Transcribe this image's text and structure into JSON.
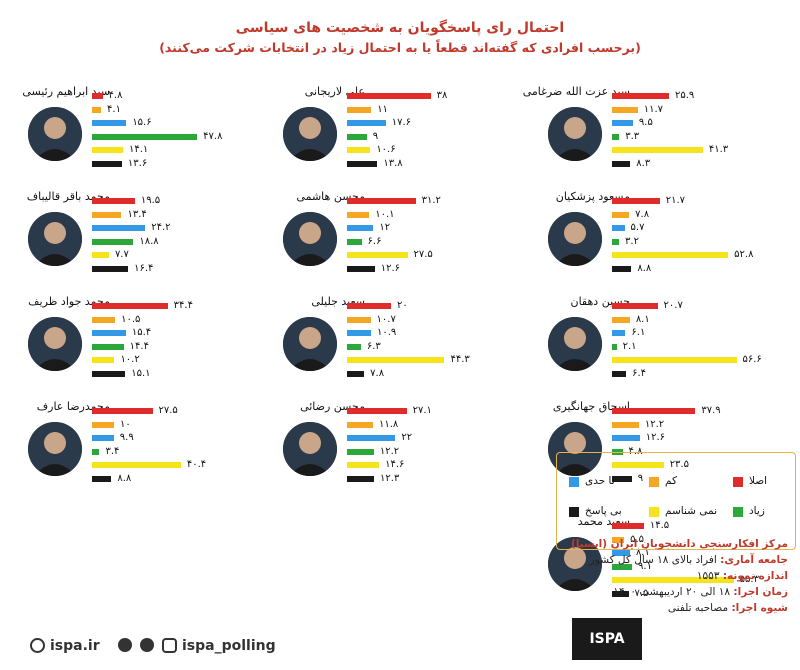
{
  "title": "احتمال رای پاسخگویان به شخصیت های سیاسی",
  "subtitle": "(برحسب افرادی که گفته‌اند قطعاً یا به احتمال زیاد در انتخابات شرکت می‌کنند)",
  "colors": {
    "asla": "#e02b2b",
    "kam": "#f5a623",
    "tahaddi": "#3399e6",
    "ziad": "#2ca83a",
    "namishenasam": "#f5e31b",
    "bipasokh": "#1a1a1a"
  },
  "legend": {
    "asla": "اصلا",
    "kam": "کم",
    "tahaddi": "تا حدی",
    "ziad": "زیاد",
    "namishenasam": "نمی شناسم",
    "bipasokh": "بی پاسخ"
  },
  "info": {
    "org": "مرکز افکارسنجی دانشجویان ایران (ایسپا)",
    "population_label": "جامعه آماری:",
    "population": "افراد بالای ۱۸ سال کل کشور",
    "sample_label": "اندازه نمونه:",
    "sample": "۱۵۵۳",
    "time_label": "زمان اجرا:",
    "time": "۱۸ الی ۲۰ اردیبهشت ۱۴۰۰",
    "method_label": "شیوه اجرا:",
    "method": "مصاحبه تلفنی"
  },
  "footer": {
    "site": "ispa.ir",
    "handle": "ispa_polling"
  },
  "logo": "ISPA",
  "chart_data": {
    "type": "bar",
    "title": "احتمال رای پاسخگویان به شخصیت های سیاسی",
    "subtitle": "(برحسب افرادی که گفته‌اند قطعاً یا به احتمال زیاد در انتخابات شرکت می‌کنند)",
    "categories": [
      "اصلا",
      "کم",
      "تا حدی",
      "زیاد",
      "نمی شناسم",
      "بی پاسخ"
    ],
    "panels": [
      {
        "name": "سید عزت الله ضرغامی",
        "values": [
          25.9,
          11.7,
          9.5,
          3.3,
          41.3,
          8.3
        ],
        "labels": [
          "۲۵.۹",
          "۱۱.۷",
          "۹.۵",
          "۳.۳",
          "۴۱.۳",
          "۸.۳"
        ]
      },
      {
        "name": "علی لاریجانی",
        "values": [
          38,
          11,
          17.6,
          9,
          10.6,
          13.8
        ],
        "labels": [
          "۳۸",
          "۱۱",
          "۱۷.۶",
          "۹",
          "۱۰.۶",
          "۱۳.۸"
        ]
      },
      {
        "name": "سید ابراهیم رئیسی",
        "values": [
          4.8,
          4.1,
          15.6,
          47.8,
          14.1,
          13.6
        ],
        "labels": [
          "۴.۸",
          "۴.۱",
          "۱۵.۶",
          "۴۷.۸",
          "۱۴.۱",
          "۱۳.۶"
        ]
      },
      {
        "name": "مسعود پزشکیان",
        "values": [
          21.7,
          7.8,
          5.7,
          3.2,
          52.8,
          8.8
        ],
        "labels": [
          "۲۱.۷",
          "۷.۸",
          "۵.۷",
          "۳.۲",
          "۵۲.۸",
          "۸.۸"
        ]
      },
      {
        "name": "محسن هاشمی",
        "values": [
          31.2,
          10.1,
          12,
          6.6,
          27.5,
          12.6
        ],
        "labels": [
          "۳۱.۲",
          "۱۰.۱",
          "۱۲",
          "۶.۶",
          "۲۷.۵",
          "۱۲.۶"
        ]
      },
      {
        "name": "محمد باقر قالیباف",
        "values": [
          19.5,
          13.4,
          24.2,
          18.8,
          7.7,
          16.4
        ],
        "labels": [
          "۱۹.۵",
          "۱۳.۴",
          "۲۴.۲",
          "۱۸.۸",
          "۷.۷",
          "۱۶.۴"
        ]
      },
      {
        "name": "حسین دهقان",
        "values": [
          20.7,
          8.1,
          6.1,
          2.1,
          56.6,
          6.4
        ],
        "labels": [
          "۲۰.۷",
          "۸.۱",
          "۶.۱",
          "۲.۱",
          "۵۶.۶",
          "۶.۴"
        ]
      },
      {
        "name": "سعید جلیلی",
        "values": [
          20,
          10.7,
          10.9,
          6.3,
          44.3,
          7.8
        ],
        "labels": [
          "۲۰",
          "۱۰.۷",
          "۱۰.۹",
          "۶.۳",
          "۴۴.۳",
          "۷.۸"
        ]
      },
      {
        "name": "محمد جواد ظریف",
        "values": [
          34.4,
          10.5,
          15.4,
          14.4,
          10.2,
          15.1
        ],
        "labels": [
          "۳۴.۴",
          "۱۰.۵",
          "۱۵.۴",
          "۱۴.۴",
          "۱۰.۲",
          "۱۵.۱"
        ]
      },
      {
        "name": "اسحاق جهانگیری",
        "values": [
          37.9,
          12.2,
          12.6,
          4.8,
          23.5,
          9
        ],
        "labels": [
          "۳۷.۹",
          "۱۲.۲",
          "۱۲.۶",
          "۴.۸",
          "۲۳.۵",
          "۹"
        ]
      },
      {
        "name": "محسن رضائی",
        "values": [
          27.1,
          11.8,
          22,
          12.2,
          14.6,
          12.3
        ],
        "labels": [
          "۲۷.۱",
          "۱۱.۸",
          "۲۲",
          "۱۲.۲",
          "۱۴.۶",
          "۱۲.۳"
        ]
      },
      {
        "name": "محمدرضا عارف",
        "values": [
          27.5,
          10,
          9.9,
          3.4,
          40.4,
          8.8
        ],
        "labels": [
          "۲۷.۵",
          "۱۰",
          "۹.۹",
          "۳.۴",
          "۴۰.۴",
          "۸.۸"
        ]
      },
      {
        "name": "سعید محمد",
        "values": [
          14.5,
          5.5,
          8.1,
          9.1,
          55.3,
          7.5
        ],
        "labels": [
          "۱۴.۵",
          "۵.۵",
          "۸.۱",
          "۹.۱",
          "۵۵.۳",
          "۷.۵"
        ]
      }
    ]
  }
}
